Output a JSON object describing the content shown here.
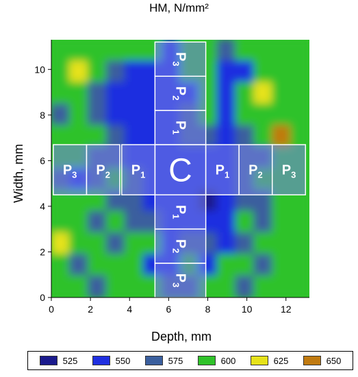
{
  "chart_data": {
    "type": "heatmap",
    "title": "HM, N/mm²",
    "xlabel": "Depth, mm",
    "ylabel": "Width, mm",
    "xlim": [
      0,
      13.2
    ],
    "ylim": [
      0,
      11.3
    ],
    "x_ticks": [
      "0",
      "2",
      "4",
      "6",
      "8",
      "10",
      "12"
    ],
    "y_ticks": [
      "0",
      "2",
      "4",
      "6",
      "8",
      "10"
    ],
    "legend_placement": "bottom",
    "levels": [
      {
        "label": "525",
        "color": "#1a1a8c"
      },
      {
        "label": "550",
        "color": "#1f2fe0"
      },
      {
        "label": "575",
        "color": "#3a5f9e"
      },
      {
        "label": "600",
        "color": "#2fc22a"
      },
      {
        "label": "625",
        "color": "#e6e21a"
      },
      {
        "label": "650",
        "color": "#c07a10"
      }
    ],
    "zones": [
      {
        "label": "C",
        "x": [
          5.3,
          7.9
        ],
        "y": [
          4.5,
          6.7
        ]
      },
      {
        "label": "P1",
        "x": [
          7.9,
          9.6
        ],
        "y": [
          4.5,
          6.7
        ]
      },
      {
        "label": "P2",
        "x": [
          9.6,
          11.3
        ],
        "y": [
          4.5,
          6.7
        ]
      },
      {
        "label": "P3",
        "x": [
          11.3,
          13.0
        ],
        "y": [
          4.5,
          6.7
        ]
      },
      {
        "label": "P1",
        "x": [
          3.6,
          5.3
        ],
        "y": [
          4.5,
          6.7
        ]
      },
      {
        "label": "P2",
        "x": [
          1.8,
          3.5
        ],
        "y": [
          4.5,
          6.7
        ]
      },
      {
        "label": "P3",
        "x": [
          0.1,
          1.8
        ],
        "y": [
          4.5,
          6.7
        ]
      },
      {
        "label": "P1",
        "x": [
          5.3,
          7.9
        ],
        "y": [
          6.7,
          8.2
        ]
      },
      {
        "label": "P2",
        "x": [
          5.3,
          7.9
        ],
        "y": [
          8.2,
          9.7
        ]
      },
      {
        "label": "P3",
        "x": [
          5.3,
          7.9
        ],
        "y": [
          9.7,
          11.2
        ]
      },
      {
        "label": "P1",
        "x": [
          5.3,
          7.9
        ],
        "y": [
          3.0,
          4.5
        ]
      },
      {
        "label": "P2",
        "x": [
          5.3,
          7.9
        ],
        "y": [
          1.5,
          3.0
        ]
      },
      {
        "label": "P3",
        "x": [
          5.3,
          7.9
        ],
        "y": [
          0.0,
          1.5
        ]
      }
    ],
    "grid_size": [
      14,
      12
    ],
    "hardness_grid": [
      [
        600,
        600,
        600,
        600,
        600,
        600,
        550,
        600,
        600,
        575,
        600,
        600,
        600,
        600
      ],
      [
        600,
        625,
        600,
        575,
        550,
        550,
        550,
        600,
        600,
        550,
        550,
        600,
        600,
        600
      ],
      [
        600,
        600,
        575,
        550,
        550,
        550,
        550,
        550,
        600,
        550,
        600,
        625,
        600,
        600
      ],
      [
        575,
        600,
        575,
        550,
        550,
        550,
        550,
        575,
        600,
        550,
        600,
        600,
        600,
        600
      ],
      [
        600,
        600,
        600,
        575,
        550,
        550,
        550,
        575,
        575,
        550,
        575,
        600,
        650,
        600
      ],
      [
        600,
        600,
        575,
        575,
        550,
        550,
        550,
        550,
        550,
        550,
        575,
        575,
        600,
        600
      ],
      [
        575,
        550,
        575,
        600,
        575,
        550,
        550,
        550,
        550,
        550,
        575,
        600,
        600,
        600
      ],
      [
        600,
        600,
        600,
        575,
        575,
        550,
        550,
        550,
        525,
        550,
        575,
        575,
        600,
        600
      ],
      [
        600,
        600,
        575,
        600,
        575,
        575,
        550,
        550,
        550,
        550,
        600,
        575,
        600,
        600
      ],
      [
        625,
        600,
        600,
        575,
        600,
        600,
        550,
        575,
        575,
        550,
        575,
        600,
        600,
        600
      ],
      [
        600,
        575,
        600,
        600,
        600,
        550,
        550,
        600,
        550,
        600,
        600,
        575,
        600,
        600
      ],
      [
        600,
        600,
        575,
        600,
        600,
        600,
        575,
        575,
        600,
        600,
        575,
        600,
        600,
        600
      ]
    ]
  }
}
